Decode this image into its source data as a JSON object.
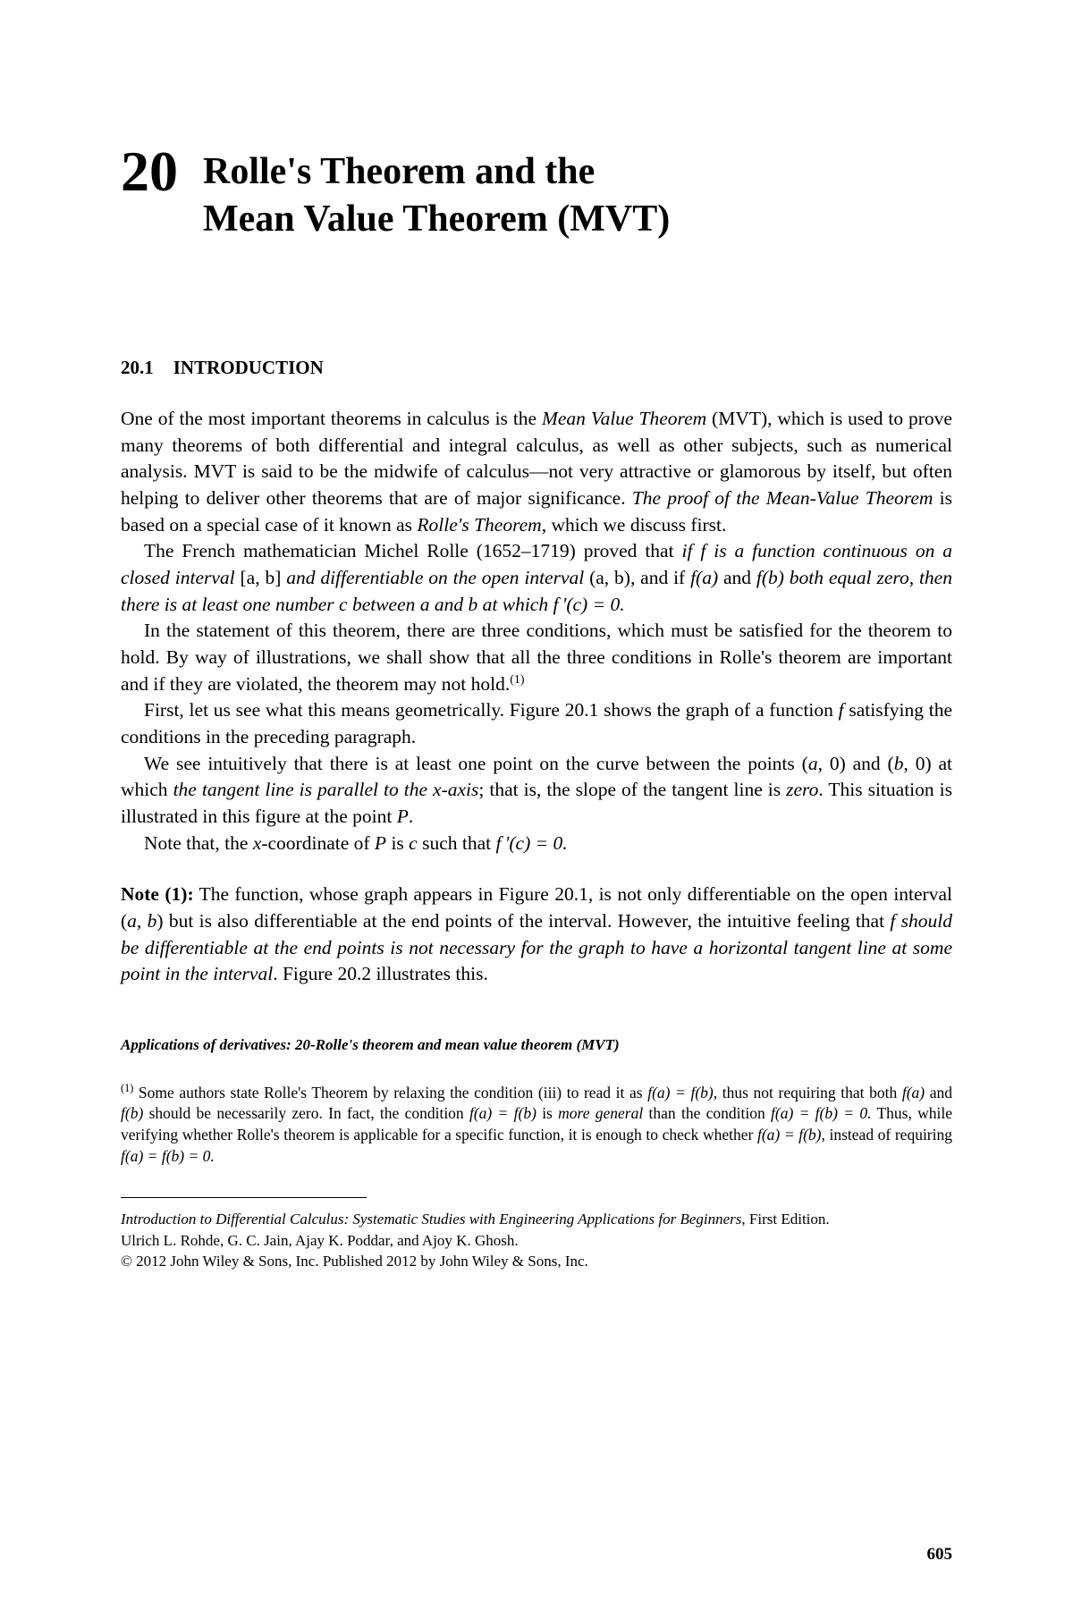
{
  "chapter": {
    "number": "20",
    "title_line1": "Rolle's Theorem and the",
    "title_line2": "Mean Value Theorem (MVT)"
  },
  "section": {
    "number": "20.1",
    "title": "INTRODUCTION"
  },
  "paragraphs": {
    "p1a": "One of the most important theorems in calculus is the ",
    "p1b": "Mean Value Theorem",
    "p1c": " (MVT), which is used to prove many theorems of both differential and integral calculus, as well as other subjects, such as numerical analysis. MVT is said to be the midwife of calculus—not very attractive or glamorous by itself, but often helping to deliver other theorems that are of major significance. ",
    "p1d": "The proof of the Mean-Value Theorem",
    "p1e": " is based on a special case of it known as ",
    "p1f": "Rolle's Theorem",
    "p1g": ", which we discuss first.",
    "p2a": "The French mathematician Michel Rolle (1652–1719) proved that ",
    "p2b": "if f is a function continuous on a closed interval ",
    "p2c": "[a, b]",
    "p2d": " and differentiable on the open interval ",
    "p2e": "(a, b)",
    "p2f": ", and if ",
    "p2g": "f(a)",
    "p2h": " and ",
    "p2i": "f(b)",
    "p2j": " both equal zero, then there is at least one number c between a and b at which f '(c) = 0.",
    "p3": "In the statement of this theorem, there are three conditions, which must be satisfied for the theorem to hold. By way of illustrations, we shall show that all the three conditions in Rolle's theorem are important and if they are violated, the theorem may not hold.",
    "p3sup": "(1)",
    "p4a": "First, let us see what this means geometrically. Figure 20.1 shows the graph of a function ",
    "p4b": "f",
    "p4c": " satisfying the conditions in the preceding paragraph.",
    "p5a": "We see intuitively that there is at least one point on the curve between the points (",
    "p5a2": "a",
    "p5a3": ", 0) and (",
    "p5a4": "b",
    "p5a5": ", 0) at which ",
    "p5b": "the tangent line is parallel to the x-axis",
    "p5c": "; that is, the slope of the tangent line is ",
    "p5d": "zero",
    "p5e": ". This situation is illustrated in this figure at the point ",
    "p5f": "P",
    "p5g": ".",
    "p6a": "Note that, the ",
    "p6b": "x",
    "p6c": "-coordinate of ",
    "p6d": "P",
    "p6e": " is ",
    "p6f": "c",
    "p6g": " such that ",
    "p6h": "f '(c) = 0."
  },
  "note": {
    "label": "Note (1):",
    "n1": " The function, whose graph appears in Figure 20.1, is not only differentiable on the open interval (",
    "n1a": "a",
    "n1b": ", ",
    "n1c": "b",
    "n1d": ") but is also differentiable at the end points of the interval. However, the intuitive feeling that ",
    "n2": "f should be differentiable at the end points is not necessary for the graph to have a horizontal tangent line at some point in the interval",
    "n3": ". Figure 20.2 illustrates this."
  },
  "applications": "Applications of derivatives: 20-Rolle's theorem and mean value theorem (MVT)",
  "footnote": {
    "sup": "(1)",
    "f1": " Some authors state Rolle's Theorem by relaxing the condition (iii) to read it as ",
    "f1a": "f(a) = f(b)",
    "f1b": ", thus not requiring that both ",
    "f2": "f(a)",
    "f3": " and ",
    "f4": "f(b)",
    "f5": " should be necessarily zero. In fact, the condition ",
    "f6": "f(a) = f(b)",
    "f7": " is ",
    "f8": "more general",
    "f9": " than the condition ",
    "f10": "f(a) = f(b) = 0.",
    "f11": " Thus, while verifying whether Rolle's theorem is applicable for a specific function, it is enough to check whether ",
    "f12": "f(a) = f(b)",
    "f13": ", instead of requiring ",
    "f14": "f(a) = f(b) = 0."
  },
  "footer": {
    "book": "Introduction to Differential Calculus: Systematic Studies with Engineering Applications for Beginners",
    "edition": ", First Edition.",
    "authors": "Ulrich L. Rohde, G. C. Jain, Ajay K. Poddar, and Ajoy K. Ghosh.",
    "copyright": "© 2012 John Wiley & Sons, Inc. Published 2012 by John Wiley & Sons, Inc."
  },
  "page_number": "605"
}
